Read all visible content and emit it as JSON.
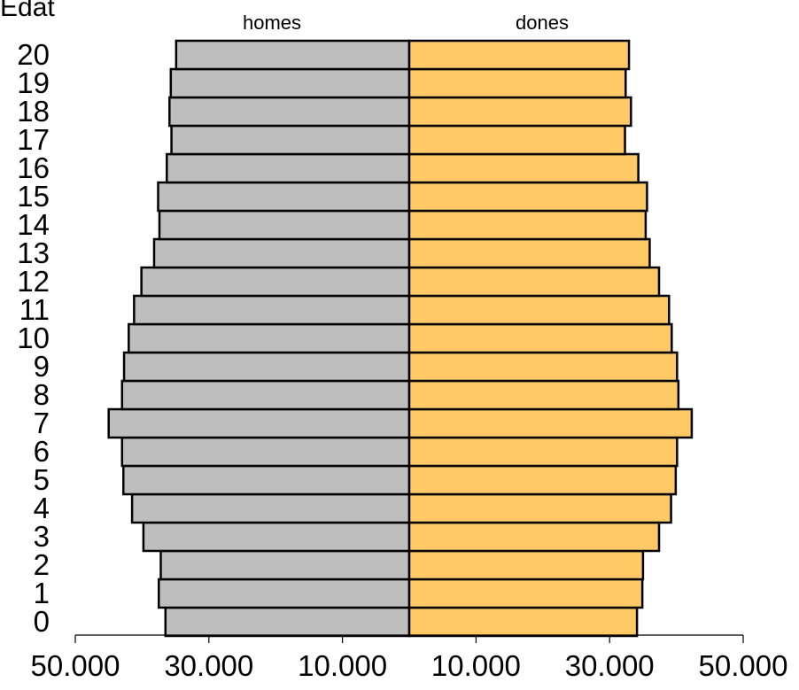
{
  "chart_data": {
    "type": "bar",
    "orientation": "horizontal",
    "ylabel": "Edat",
    "categories": [
      "0",
      "1",
      "2",
      "3",
      "4",
      "5",
      "6",
      "7",
      "8",
      "9",
      "10",
      "11",
      "12",
      "13",
      "14",
      "15",
      "16",
      "17",
      "18",
      "19",
      "20"
    ],
    "series": [
      {
        "name": "homes",
        "color": "#bebebe",
        "values": [
          36500,
          37500,
          37200,
          39800,
          41500,
          42800,
          43000,
          45000,
          43000,
          42700,
          42000,
          41200,
          40100,
          38200,
          37400,
          37600,
          36300,
          35600,
          35900,
          35700,
          34900
        ]
      },
      {
        "name": "dones",
        "color": "#ffc966",
        "values": [
          34100,
          34900,
          35000,
          37400,
          39200,
          39900,
          40100,
          42300,
          40300,
          40100,
          39300,
          38900,
          37400,
          36000,
          35400,
          35600,
          34300,
          32300,
          33200,
          32400,
          32900
        ]
      }
    ],
    "x_ticks": [
      "50.000",
      "30.000",
      "10.000",
      "10.000",
      "30.000",
      "50.000"
    ],
    "x_tick_values": [
      -50000,
      -30000,
      -10000,
      10000,
      30000,
      50000
    ],
    "xlim": [
      -50000,
      50000
    ],
    "grid": false,
    "legend": "none"
  }
}
